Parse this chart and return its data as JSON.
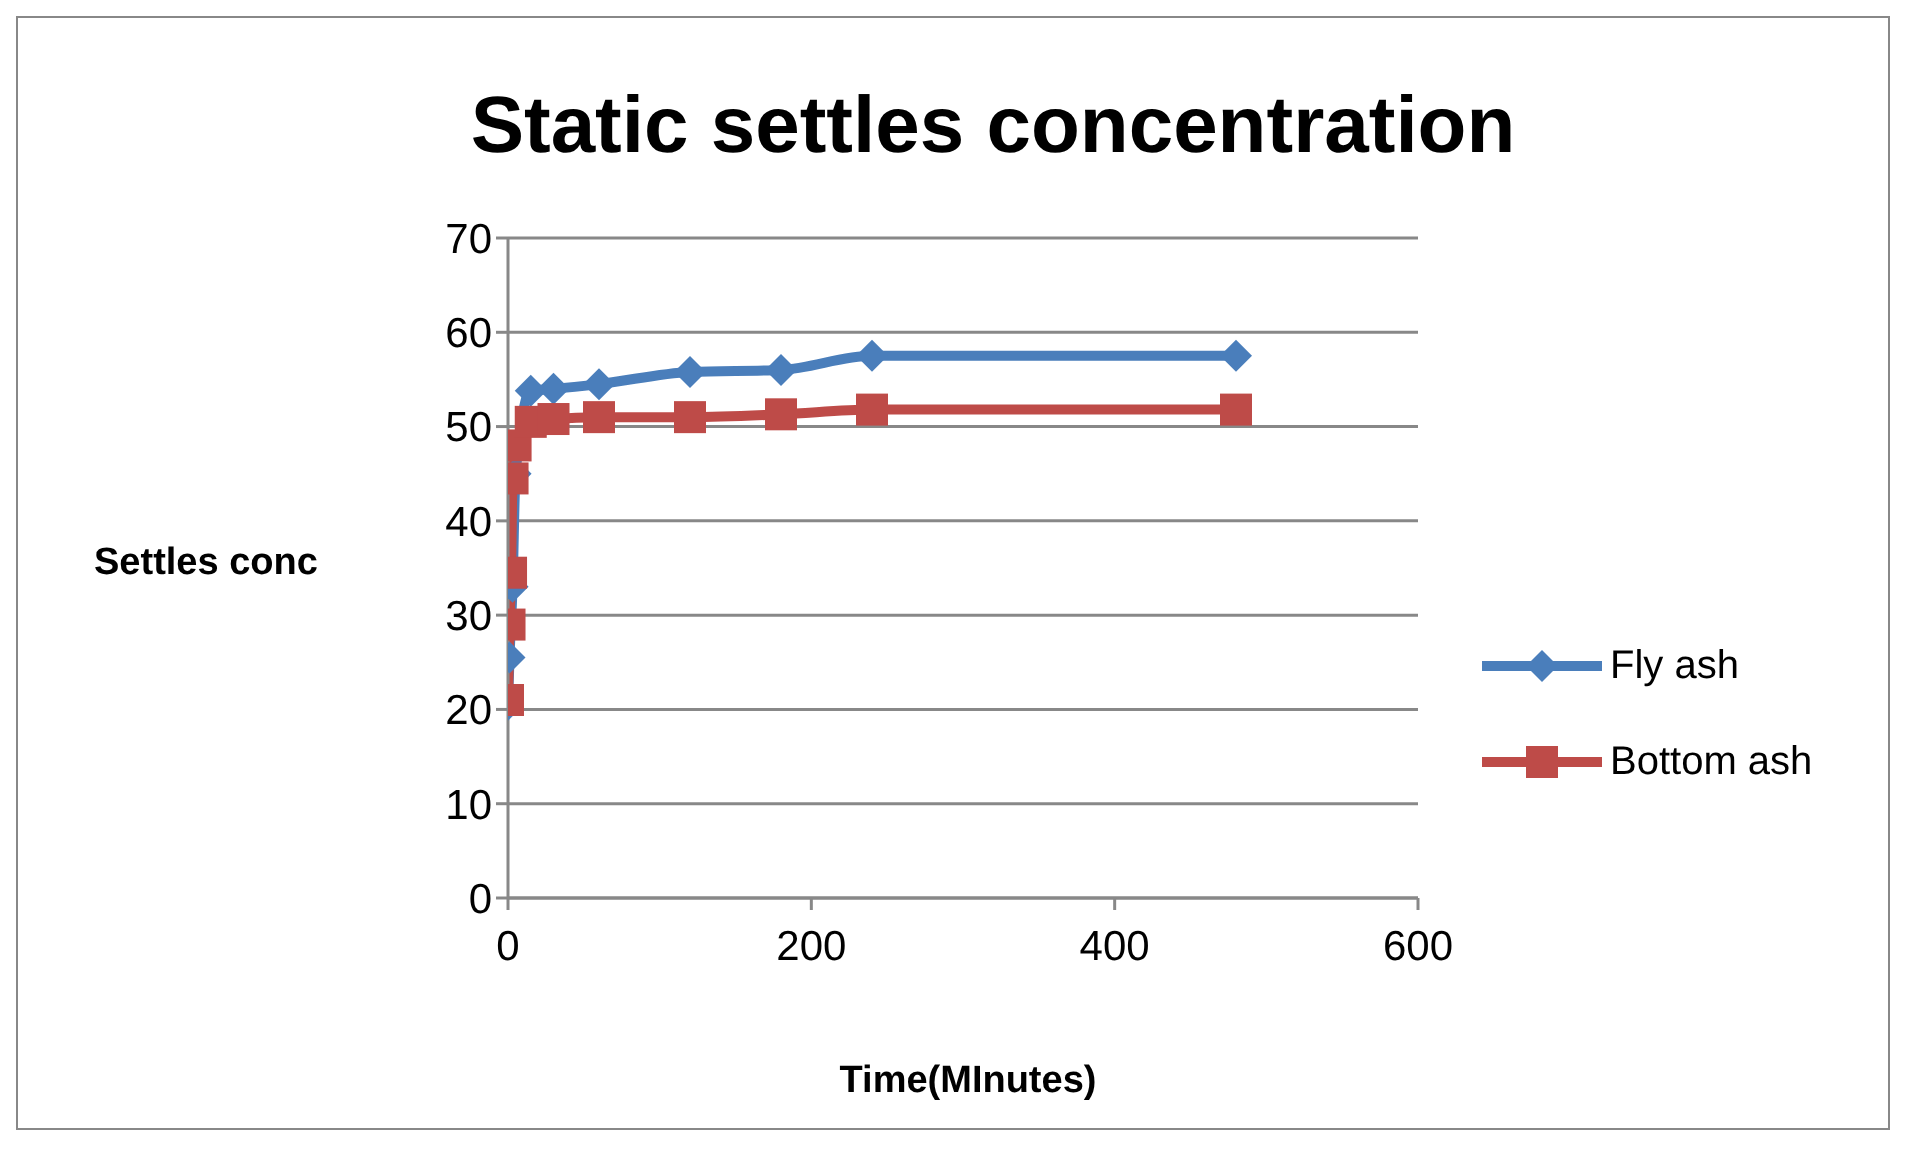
{
  "chart_data": {
    "type": "line",
    "title": "Static settles concentration",
    "xlabel": "Time(MInutes)",
    "ylabel": "Settles conc",
    "xlim": [
      0,
      600
    ],
    "xticks": [
      0,
      200,
      400,
      600
    ],
    "ylim": [
      0,
      70
    ],
    "yticks": [
      0,
      10,
      20,
      30,
      40,
      50,
      60,
      70
    ],
    "grid": "y",
    "legend": "right",
    "x": [
      0,
      1,
      2,
      3,
      5,
      10,
      15,
      30,
      60,
      120,
      180,
      240,
      480
    ],
    "series": [
      {
        "name": "Fly ash",
        "color": "#4a7ebb",
        "marker": "diamond",
        "values": [
          20.5,
          25.5,
          null,
          33,
          45,
          null,
          53.8,
          54,
          54.5,
          55.8,
          56,
          57.5,
          57.5
        ]
      },
      {
        "name": "Bottom ash",
        "color": "#be4b48",
        "marker": "square",
        "values": [
          21,
          29,
          34.5,
          44.5,
          48,
          null,
          50.5,
          50.8,
          51,
          51,
          51.3,
          51.8,
          51.8
        ]
      }
    ]
  }
}
